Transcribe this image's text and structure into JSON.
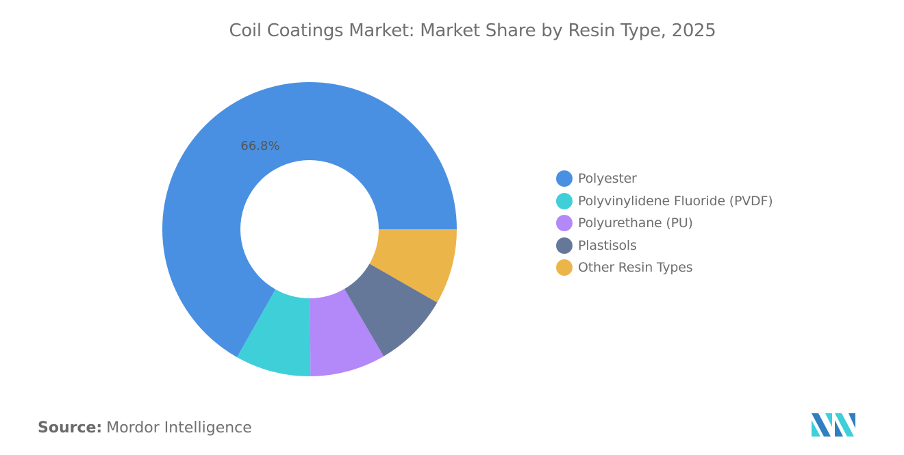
{
  "chart_data": {
    "type": "pie",
    "variant": "donut",
    "title": "Coil Coatings Market: Market Share by Resin Type, 2025",
    "categories": [
      "Polyester",
      "Polyvinylidene Fluoride (PVDF)",
      "Polyurethane (PU)",
      "Plastisols",
      "Other Resin Types"
    ],
    "values": [
      66.8,
      8.3,
      8.3,
      8.3,
      8.3
    ],
    "colors": [
      "#4a90e2",
      "#3ecfd8",
      "#b388f9",
      "#66789a",
      "#ebb54a"
    ],
    "data_labels": {
      "Polyester": "66.8%"
    },
    "legend_position": "right"
  },
  "source": {
    "label": "Source:",
    "value": "Mordor Intelligence"
  }
}
